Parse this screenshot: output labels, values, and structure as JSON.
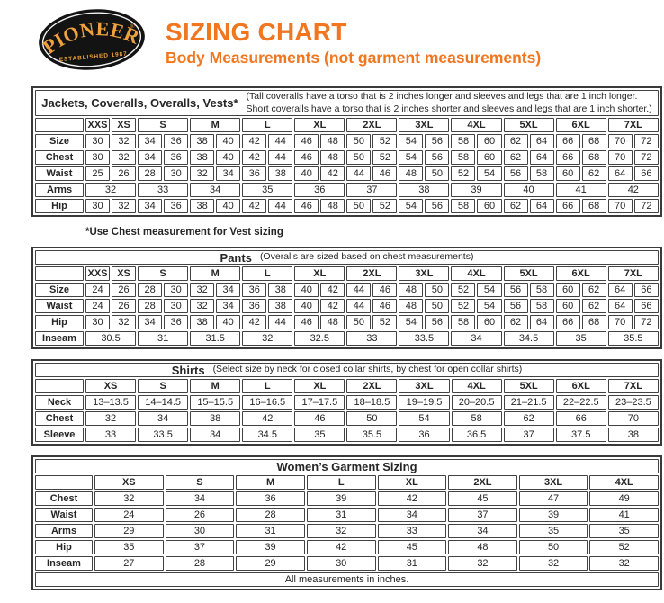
{
  "logo": {
    "name": "PIONEER",
    "registered": "®",
    "established": "ESTABLISHED 1987",
    "text_color": "#EFA13E",
    "badge_color": "#131313"
  },
  "header": {
    "title": "SIZING CHART",
    "subtitle": "Body Measurements (not garment measurements)",
    "accent_color": "#F0761F"
  },
  "tables": [
    {
      "name": "jackets-coveralls-overalls-vests",
      "title": "Jackets, Coveralls, Overalls, Vests*",
      "note_lines": [
        "(Tall coveralls have a torso that is 2 inches longer and sleeves and legs that are 1 inch longer.",
        "Short coveralls have a torso that is 2 inches shorter and sleeves and legs that are 1 inch shorter.)"
      ],
      "label_col_width": 54,
      "header": [
        {
          "label": "XXS",
          "span": 1
        },
        {
          "label": "XS",
          "span": 1
        },
        {
          "label": "S",
          "span": 2
        },
        {
          "label": "M",
          "span": 2
        },
        {
          "label": "L",
          "span": 2
        },
        {
          "label": "XL",
          "span": 2
        },
        {
          "label": "2XL",
          "span": 2
        },
        {
          "label": "3XL",
          "span": 2
        },
        {
          "label": "4XL",
          "span": 2
        },
        {
          "label": "5XL",
          "span": 2
        },
        {
          "label": "6XL",
          "span": 2
        },
        {
          "label": "7XL",
          "span": 2
        }
      ],
      "rows": [
        {
          "label": "Size",
          "span": 1,
          "values": [
            "30",
            "32",
            "34",
            "36",
            "38",
            "40",
            "42",
            "44",
            "46",
            "48",
            "50",
            "52",
            "54",
            "56",
            "58",
            "60",
            "62",
            "64",
            "66",
            "68",
            "70",
            "72"
          ]
        },
        {
          "label": "Chest",
          "span": 1,
          "values": [
            "30",
            "32",
            "34",
            "36",
            "38",
            "40",
            "42",
            "44",
            "46",
            "48",
            "50",
            "52",
            "54",
            "56",
            "58",
            "60",
            "62",
            "64",
            "66",
            "68",
            "70",
            "72"
          ]
        },
        {
          "label": "Waist",
          "span": 1,
          "values": [
            "25",
            "26",
            "28",
            "30",
            "32",
            "34",
            "36",
            "38",
            "40",
            "42",
            "44",
            "46",
            "48",
            "50",
            "52",
            "54",
            "56",
            "58",
            "60",
            "62",
            "64",
            "66"
          ]
        },
        {
          "label": "Arms",
          "span": 2,
          "values": [
            "32",
            "33",
            "34",
            "35",
            "36",
            "37",
            "38",
            "39",
            "40",
            "41",
            "42"
          ]
        },
        {
          "label": "Hip",
          "span": 1,
          "values": [
            "30",
            "32",
            "34",
            "36",
            "38",
            "40",
            "42",
            "44",
            "46",
            "48",
            "50",
            "52",
            "54",
            "56",
            "58",
            "60",
            "62",
            "64",
            "66",
            "68",
            "70",
            "72"
          ]
        }
      ],
      "footnote": "*Use Chest measurement for Vest sizing"
    },
    {
      "name": "pants",
      "title": "Pants",
      "note_lines": [
        "(Overalls are sized based on chest measurements)"
      ],
      "label_col_width": 54,
      "header": [
        {
          "label": "XXS",
          "span": 1
        },
        {
          "label": "XS",
          "span": 1
        },
        {
          "label": "S",
          "span": 2
        },
        {
          "label": "M",
          "span": 2
        },
        {
          "label": "L",
          "span": 2
        },
        {
          "label": "XL",
          "span": 2
        },
        {
          "label": "2XL",
          "span": 2
        },
        {
          "label": "3XL",
          "span": 2
        },
        {
          "label": "4XL",
          "span": 2
        },
        {
          "label": "5XL",
          "span": 2
        },
        {
          "label": "6XL",
          "span": 2
        },
        {
          "label": "7XL",
          "span": 2
        }
      ],
      "rows": [
        {
          "label": "Size",
          "span": 1,
          "values": [
            "24",
            "26",
            "28",
            "30",
            "32",
            "34",
            "36",
            "38",
            "40",
            "42",
            "44",
            "46",
            "48",
            "50",
            "52",
            "54",
            "56",
            "58",
            "60",
            "62",
            "64",
            "66"
          ]
        },
        {
          "label": "Waist",
          "span": 1,
          "values": [
            "24",
            "26",
            "28",
            "30",
            "32",
            "34",
            "36",
            "38",
            "40",
            "42",
            "44",
            "46",
            "48",
            "50",
            "52",
            "54",
            "56",
            "58",
            "60",
            "62",
            "64",
            "66"
          ]
        },
        {
          "label": "Hip",
          "span": 1,
          "values": [
            "30",
            "32",
            "34",
            "36",
            "38",
            "40",
            "42",
            "44",
            "46",
            "48",
            "50",
            "52",
            "54",
            "56",
            "58",
            "60",
            "62",
            "64",
            "66",
            "68",
            "70",
            "72"
          ]
        },
        {
          "label": "Inseam",
          "span": 2,
          "values": [
            "30.5",
            "31",
            "31.5",
            "32",
            "32.5",
            "33",
            "33.5",
            "34",
            "34.5",
            "35",
            "35.5"
          ]
        }
      ]
    },
    {
      "name": "shirts",
      "title": "Shirts",
      "note_lines": [
        "(Select size by neck for closed collar shirts, by chest for open collar shirts)"
      ],
      "label_col_width": 54,
      "header": [
        {
          "label": "XS",
          "span": 1
        },
        {
          "label": "S",
          "span": 1
        },
        {
          "label": "M",
          "span": 1
        },
        {
          "label": "L",
          "span": 1
        },
        {
          "label": "XL",
          "span": 1
        },
        {
          "label": "2XL",
          "span": 1
        },
        {
          "label": "3XL",
          "span": 1
        },
        {
          "label": "4XL",
          "span": 1
        },
        {
          "label": "5XL",
          "span": 1
        },
        {
          "label": "6XL",
          "span": 1
        },
        {
          "label": "7XL",
          "span": 1
        }
      ],
      "rows": [
        {
          "label": "Neck",
          "span": 1,
          "values": [
            "13–13.5",
            "14–14.5",
            "15–15.5",
            "16–16.5",
            "17–17.5",
            "18–18.5",
            "19–19.5",
            "20–20.5",
            "21–21.5",
            "22–22.5",
            "23–23.5"
          ]
        },
        {
          "label": "Chest",
          "span": 1,
          "values": [
            "32",
            "34",
            "38",
            "42",
            "46",
            "50",
            "54",
            "58",
            "62",
            "66",
            "70"
          ]
        },
        {
          "label": "Sleeve",
          "span": 1,
          "values": [
            "33",
            "33.5",
            "34",
            "34.5",
            "35",
            "35.5",
            "36",
            "36.5",
            "37",
            "37.5",
            "38"
          ]
        }
      ]
    },
    {
      "name": "womens-garment-sizing",
      "title": "Women’s Garment Sizing",
      "note_lines": [],
      "label_col_width": 64,
      "header": [
        {
          "label": "XS",
          "span": 1
        },
        {
          "label": "S",
          "span": 1
        },
        {
          "label": "M",
          "span": 1
        },
        {
          "label": "L",
          "span": 1
        },
        {
          "label": "XL",
          "span": 1
        },
        {
          "label": "2XL",
          "span": 1
        },
        {
          "label": "3XL",
          "span": 1
        },
        {
          "label": "4XL",
          "span": 1
        }
      ],
      "rows": [
        {
          "label": "Chest",
          "span": 1,
          "values": [
            "32",
            "34",
            "36",
            "39",
            "42",
            "45",
            "47",
            "49"
          ]
        },
        {
          "label": "Waist",
          "span": 1,
          "values": [
            "24",
            "26",
            "28",
            "31",
            "34",
            "37",
            "39",
            "41"
          ]
        },
        {
          "label": "Arms",
          "span": 1,
          "values": [
            "29",
            "30",
            "31",
            "32",
            "33",
            "34",
            "35",
            "35"
          ]
        },
        {
          "label": "Hip",
          "span": 1,
          "values": [
            "35",
            "37",
            "39",
            "42",
            "45",
            "48",
            "50",
            "52"
          ]
        },
        {
          "label": "Inseam",
          "span": 1,
          "values": [
            "27",
            "28",
            "29",
            "30",
            "31",
            "32",
            "32",
            "32"
          ]
        }
      ],
      "footer": "All measurements in inches."
    }
  ]
}
